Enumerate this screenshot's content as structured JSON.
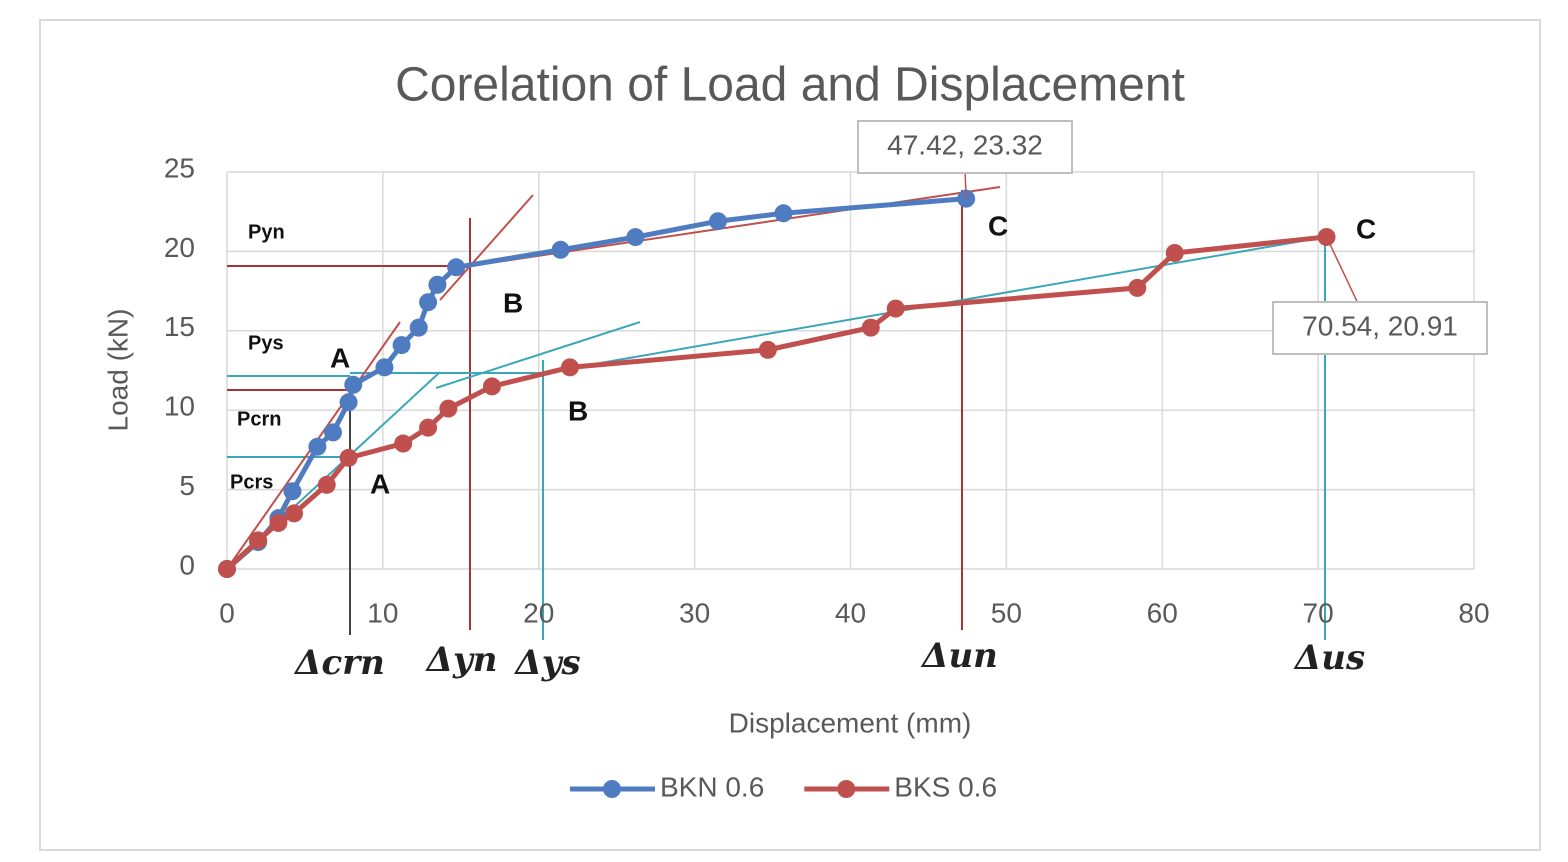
{
  "chart_data": {
    "type": "line",
    "title": "Corelation of Load and Displacement",
    "x_label": "Displacement (mm)",
    "y_label": "Load (kN)",
    "xlim": [
      0,
      80
    ],
    "xticks": [
      0,
      10,
      20,
      30,
      40,
      50,
      60,
      70,
      80
    ],
    "ylim": [
      0,
      25
    ],
    "yticks": [
      0,
      5,
      10,
      15,
      20,
      25
    ],
    "grid": true,
    "legend": "bottom",
    "series": [
      {
        "name": "BKN 0.6",
        "color": "#4f7cc0",
        "x": [
          0,
          2,
          3.3,
          4.2,
          5.8,
          6.8,
          7.8,
          8.1,
          10.1,
          11.2,
          12.3,
          12.9,
          13.5,
          14.7,
          21.4,
          26.2,
          31.5,
          35.7,
          47.42
        ],
        "values": [
          0,
          1.7,
          3.2,
          4.9,
          7.7,
          8.6,
          10.5,
          11.6,
          12.7,
          14.1,
          15.2,
          16.8,
          17.9,
          19,
          20.1,
          20.9,
          21.9,
          22.4,
          23.32
        ],
        "value_labels": [
          null,
          null,
          null,
          null,
          null,
          null,
          null,
          null,
          null,
          null,
          null,
          null,
          null,
          null,
          null,
          null,
          null,
          null,
          "47.42, 23.32"
        ]
      },
      {
        "name": "BKS 0.6",
        "color": "#c0504d",
        "x": [
          0,
          2,
          3.3,
          4.3,
          6.4,
          7.8,
          11.3,
          12.9,
          14.2,
          17,
          22,
          34.7,
          41.3,
          42.9,
          58.4,
          60.8,
          70.54
        ],
        "values": [
          0,
          1.8,
          2.9,
          3.5,
          5.3,
          7,
          7.9,
          8.9,
          10.1,
          11.5,
          12.7,
          13.8,
          15.2,
          16.4,
          17.7,
          19.9,
          20.91
        ],
        "value_labels": [
          null,
          null,
          null,
          null,
          null,
          null,
          null,
          null,
          null,
          null,
          null,
          null,
          null,
          null,
          null,
          null,
          "70.54, 20.91"
        ]
      }
    ],
    "annotations": [
      "Pyn",
      "Pys",
      "Pcrn",
      "Pcrs",
      "A",
      "A",
      "B",
      "B",
      "C",
      "C",
      "Δcrn",
      "Δyn",
      "Δys",
      "Δun",
      "Δus"
    ]
  }
}
